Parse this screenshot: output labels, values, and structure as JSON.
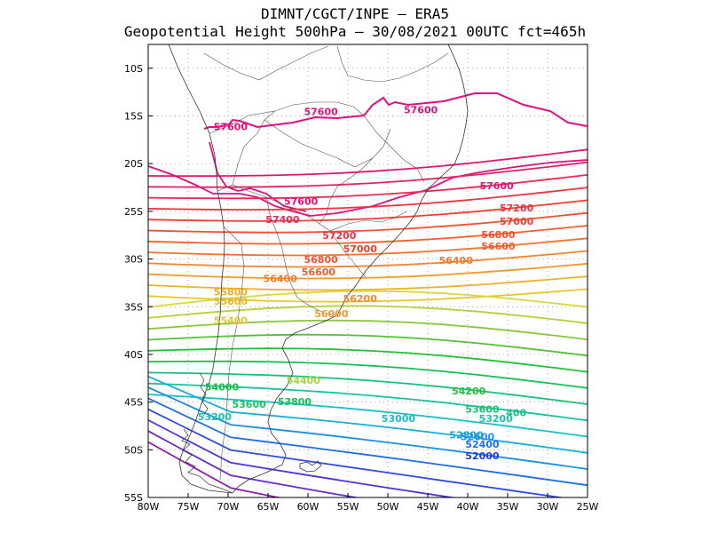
{
  "title": {
    "line1": "DIMNT/CGCT/INPE  —  ERA5",
    "line2": "Geopotential Height 500hPa  —  30/08/2021 00UTC fct=465h"
  },
  "axes": {
    "lat_ticks": [
      "10S",
      "15S",
      "20S",
      "25S",
      "30S",
      "35S",
      "40S",
      "45S",
      "50S",
      "55S"
    ],
    "lon_ticks": [
      "80W",
      "75W",
      "70W",
      "65W",
      "60W",
      "55W",
      "50W",
      "45W",
      "40W",
      "35W",
      "30W",
      "25W"
    ],
    "lon_range": [
      -80,
      -25
    ],
    "lat_range": [
      -55,
      -7.5
    ]
  },
  "contours": {
    "levels": [
      52000,
      52200,
      52400,
      52600,
      52800,
      53000,
      53200,
      53400,
      53600,
      53800,
      54000,
      54200,
      54400,
      54600,
      54800,
      55000,
      55200,
      55400,
      55600,
      55800,
      56000,
      56200,
      56400,
      56600,
      56800,
      57000,
      57200,
      57400,
      57600
    ],
    "labels": [
      {
        "text": "57600",
        "lon": -71.8,
        "lat": -16.5,
        "color": "#e0117f"
      },
      {
        "text": "57600",
        "lon": -60.5,
        "lat": -14.9,
        "color": "#e0117f"
      },
      {
        "text": "57600",
        "lon": -48.0,
        "lat": -14.7,
        "color": "#e0117f"
      },
      {
        "text": "57600",
        "lon": -38.5,
        "lat": -22.7,
        "color": "#e0117f"
      },
      {
        "text": "57600",
        "lon": -63.0,
        "lat": -24.3,
        "color": "#e0117f"
      },
      {
        "text": "57400",
        "lon": -65.3,
        "lat": -26.2,
        "color": "#e62a5a"
      },
      {
        "text": "57200",
        "lon": -36.0,
        "lat": -25.0,
        "color": "#ee3340"
      },
      {
        "text": "57200",
        "lon": -58.2,
        "lat": -27.9,
        "color": "#ee3340"
      },
      {
        "text": "57000",
        "lon": -36.0,
        "lat": -26.4,
        "color": "#f23c33"
      },
      {
        "text": "57000",
        "lon": -55.6,
        "lat": -29.3,
        "color": "#f23c33"
      },
      {
        "text": "56800",
        "lon": -38.3,
        "lat": -27.8,
        "color": "#f4502e"
      },
      {
        "text": "56800",
        "lon": -60.5,
        "lat": -30.4,
        "color": "#f4502e"
      },
      {
        "text": "56600",
        "lon": -38.3,
        "lat": -29.0,
        "color": "#f55a2c"
      },
      {
        "text": "56600",
        "lon": -60.8,
        "lat": -31.7,
        "color": "#f55a2c"
      },
      {
        "text": "56400",
        "lon": -43.6,
        "lat": -30.5,
        "color": "#f37a2b"
      },
      {
        "text": "56400",
        "lon": -65.6,
        "lat": -32.4,
        "color": "#f37a2b"
      },
      {
        "text": "56200",
        "lon": -55.6,
        "lat": -34.5,
        "color": "#f08a30"
      },
      {
        "text": "56000",
        "lon": -59.2,
        "lat": -36.1,
        "color": "#ef9a32"
      },
      {
        "text": "55800",
        "lon": -71.8,
        "lat": -33.8,
        "color": "#edac2e"
      },
      {
        "text": "55600",
        "lon": -71.8,
        "lat": -34.8,
        "color": "#e9b92e"
      },
      {
        "text": "55400",
        "lon": -71.8,
        "lat": -36.8,
        "color": "#e4c82f"
      },
      {
        "text": "54400",
        "lon": -62.7,
        "lat": -43.1,
        "color": "#a6d53b"
      },
      {
        "text": "54000",
        "lon": -72.9,
        "lat": -43.8,
        "color": "#16bf42"
      },
      {
        "text": "53800",
        "lon": -63.8,
        "lat": -45.3,
        "color": "#14c156"
      },
      {
        "text": "53600",
        "lon": -69.5,
        "lat": -45.6,
        "color": "#17c36b"
      },
      {
        "text": "54200",
        "lon": -42.0,
        "lat": -44.2,
        "color": "#23c035"
      },
      {
        "text": "53600",
        "lon": -40.3,
        "lat": -46.1,
        "color": "#17c36b"
      },
      {
        "text": "400",
        "lon": -35.2,
        "lat": -46.5,
        "color": "#17c389"
      },
      {
        "text": "53200",
        "lon": -38.6,
        "lat": -47.1,
        "color": "#18c2ad"
      },
      {
        "text": "53200",
        "lon": -73.8,
        "lat": -46.9,
        "color": "#18c2ad"
      },
      {
        "text": "53000",
        "lon": -50.8,
        "lat": -47.1,
        "color": "#1bbcc5"
      },
      {
        "text": "52800",
        "lon": -42.3,
        "lat": -48.8,
        "color": "#1aa5d8"
      },
      {
        "text": "52600",
        "lon": -40.9,
        "lat": -49.0,
        "color": "#2191e0"
      },
      {
        "text": "52400",
        "lon": -40.3,
        "lat": -49.8,
        "color": "#1d73e6"
      },
      {
        "text": "52000",
        "lon": -40.3,
        "lat": -51.0,
        "color": "#1b3ae6"
      }
    ]
  }
}
